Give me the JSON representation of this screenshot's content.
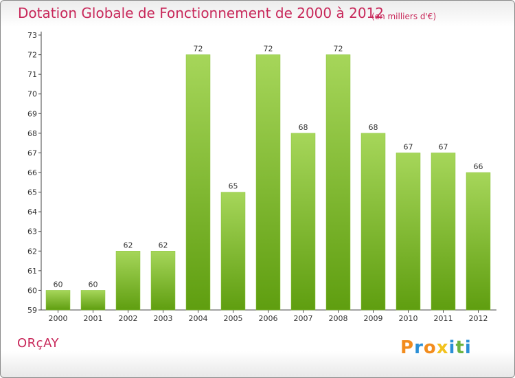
{
  "chart_data": {
    "type": "bar",
    "title": "Dotation Globale de Fonctionnement de 2000 à 2012",
    "subtitle": "(en milliers d'€)",
    "categories": [
      "2000",
      "2001",
      "2002",
      "2003",
      "2004",
      "2005",
      "2006",
      "2007",
      "2008",
      "2009",
      "2010",
      "2011",
      "2012"
    ],
    "values": [
      60,
      60,
      62,
      62,
      72,
      65,
      72,
      68,
      72,
      68,
      67,
      67,
      66
    ],
    "ylim": [
      59,
      73
    ],
    "yticks": [
      59,
      60,
      61,
      62,
      63,
      64,
      65,
      66,
      67,
      68,
      69,
      70,
      71,
      72,
      73
    ],
    "xlabel": "",
    "ylabel": "",
    "grid": false,
    "bar_color_light": "#a6d65a",
    "bar_color_dark": "#5f9e10"
  },
  "footer": {
    "place": "ORçAY",
    "brand": "Proxiti"
  },
  "colors": {
    "accent": "#c8285a",
    "brand_letters": [
      "#f28c1e",
      "#2a8fd6",
      "#f28c1e",
      "#f2c21e",
      "#2a8fd6",
      "#6cb33f",
      "#2a8fd6"
    ]
  }
}
